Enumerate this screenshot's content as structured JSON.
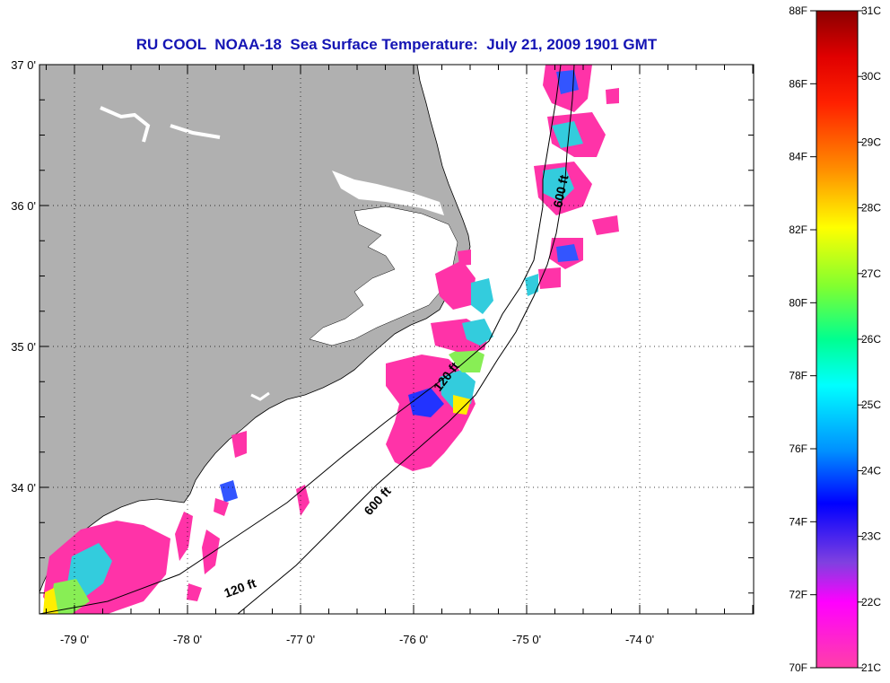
{
  "title": "RU COOL  NOAA-18  Sea Surface Temperature:  July 21, 2009 1901 GMT",
  "map": {
    "lon_ticks": [
      {
        "value": -79,
        "label": "-79 0'"
      },
      {
        "value": -78,
        "label": "-78 0'"
      },
      {
        "value": -77,
        "label": "-77 0'"
      },
      {
        "value": -76,
        "label": "-76 0'"
      },
      {
        "value": -75,
        "label": "-75 0'"
      },
      {
        "value": -74,
        "label": "-74 0'"
      }
    ],
    "lat_ticks": [
      {
        "value": 37,
        "label": "37 0'"
      },
      {
        "value": 36,
        "label": "36 0'"
      },
      {
        "value": 35,
        "label": "35 0'"
      },
      {
        "value": 34,
        "label": "34 0'"
      }
    ],
    "lon_range": [
      -79.3,
      -72.85
    ],
    "lat_range": [
      33.1,
      37.0
    ],
    "land_color": "#b0b0b0",
    "contour_labels": [
      "120 ft",
      "600 ft",
      "120 ft",
      "600 ft"
    ],
    "grid": "dotted"
  },
  "colorbar": {
    "f_labels": [
      "88F",
      "86F",
      "84F",
      "82F",
      "80F",
      "78F",
      "76F",
      "74F",
      "72F",
      "70F"
    ],
    "c_labels": [
      "31C",
      "30C",
      "29C",
      "28C",
      "27C",
      "26C",
      "25C",
      "24C",
      "23C",
      "22C",
      "21C"
    ],
    "colors": [
      "#8b0000",
      "#ff0000",
      "#ff8c00",
      "#ffff00",
      "#7fff00",
      "#00ffa0",
      "#00ffff",
      "#00a0ff",
      "#0000ff",
      "#8a2be2",
      "#ff00ff",
      "#ff40a0"
    ]
  }
}
